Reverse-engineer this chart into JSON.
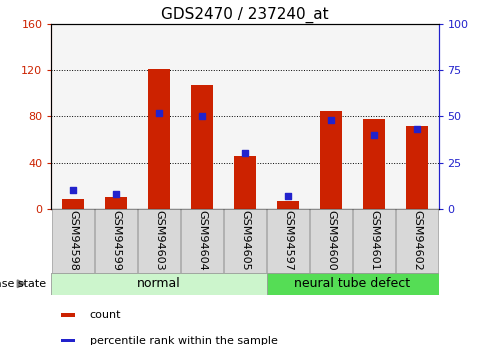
{
  "title": "GDS2470 / 237240_at",
  "categories": [
    "GSM94598",
    "GSM94599",
    "GSM94603",
    "GSM94604",
    "GSM94605",
    "GSM94597",
    "GSM94600",
    "GSM94601",
    "GSM94602"
  ],
  "counts": [
    8,
    10,
    121,
    107,
    46,
    7,
    85,
    78,
    72
  ],
  "percentiles": [
    10,
    8,
    52,
    50,
    30,
    7,
    48,
    40,
    43
  ],
  "groups": [
    {
      "label": "normal",
      "start": 0,
      "end": 4,
      "color": "#ccf5cc"
    },
    {
      "label": "neural tube defect",
      "start": 5,
      "end": 8,
      "color": "#55dd55"
    }
  ],
  "disease_state_label": "disease state",
  "legend_items": [
    {
      "label": "count",
      "color": "#cc2200"
    },
    {
      "label": "percentile rank within the sample",
      "color": "#2222cc"
    }
  ],
  "left_axis_color": "#cc2200",
  "right_axis_color": "#2222cc",
  "bar_color": "#cc2200",
  "dot_color": "#2222cc",
  "ylim_left": [
    0,
    160
  ],
  "ylim_right": [
    0,
    100
  ],
  "yticks_left": [
    0,
    40,
    80,
    120,
    160
  ],
  "yticks_right": [
    0,
    25,
    50,
    75,
    100
  ],
  "background_color": "#ffffff",
  "plot_bg_color": "#f5f5f5",
  "tick_label_bg": "#d8d8d8",
  "bar_width": 0.5,
  "title_fontsize": 11,
  "tick_fontsize": 8,
  "group_fontsize": 9
}
